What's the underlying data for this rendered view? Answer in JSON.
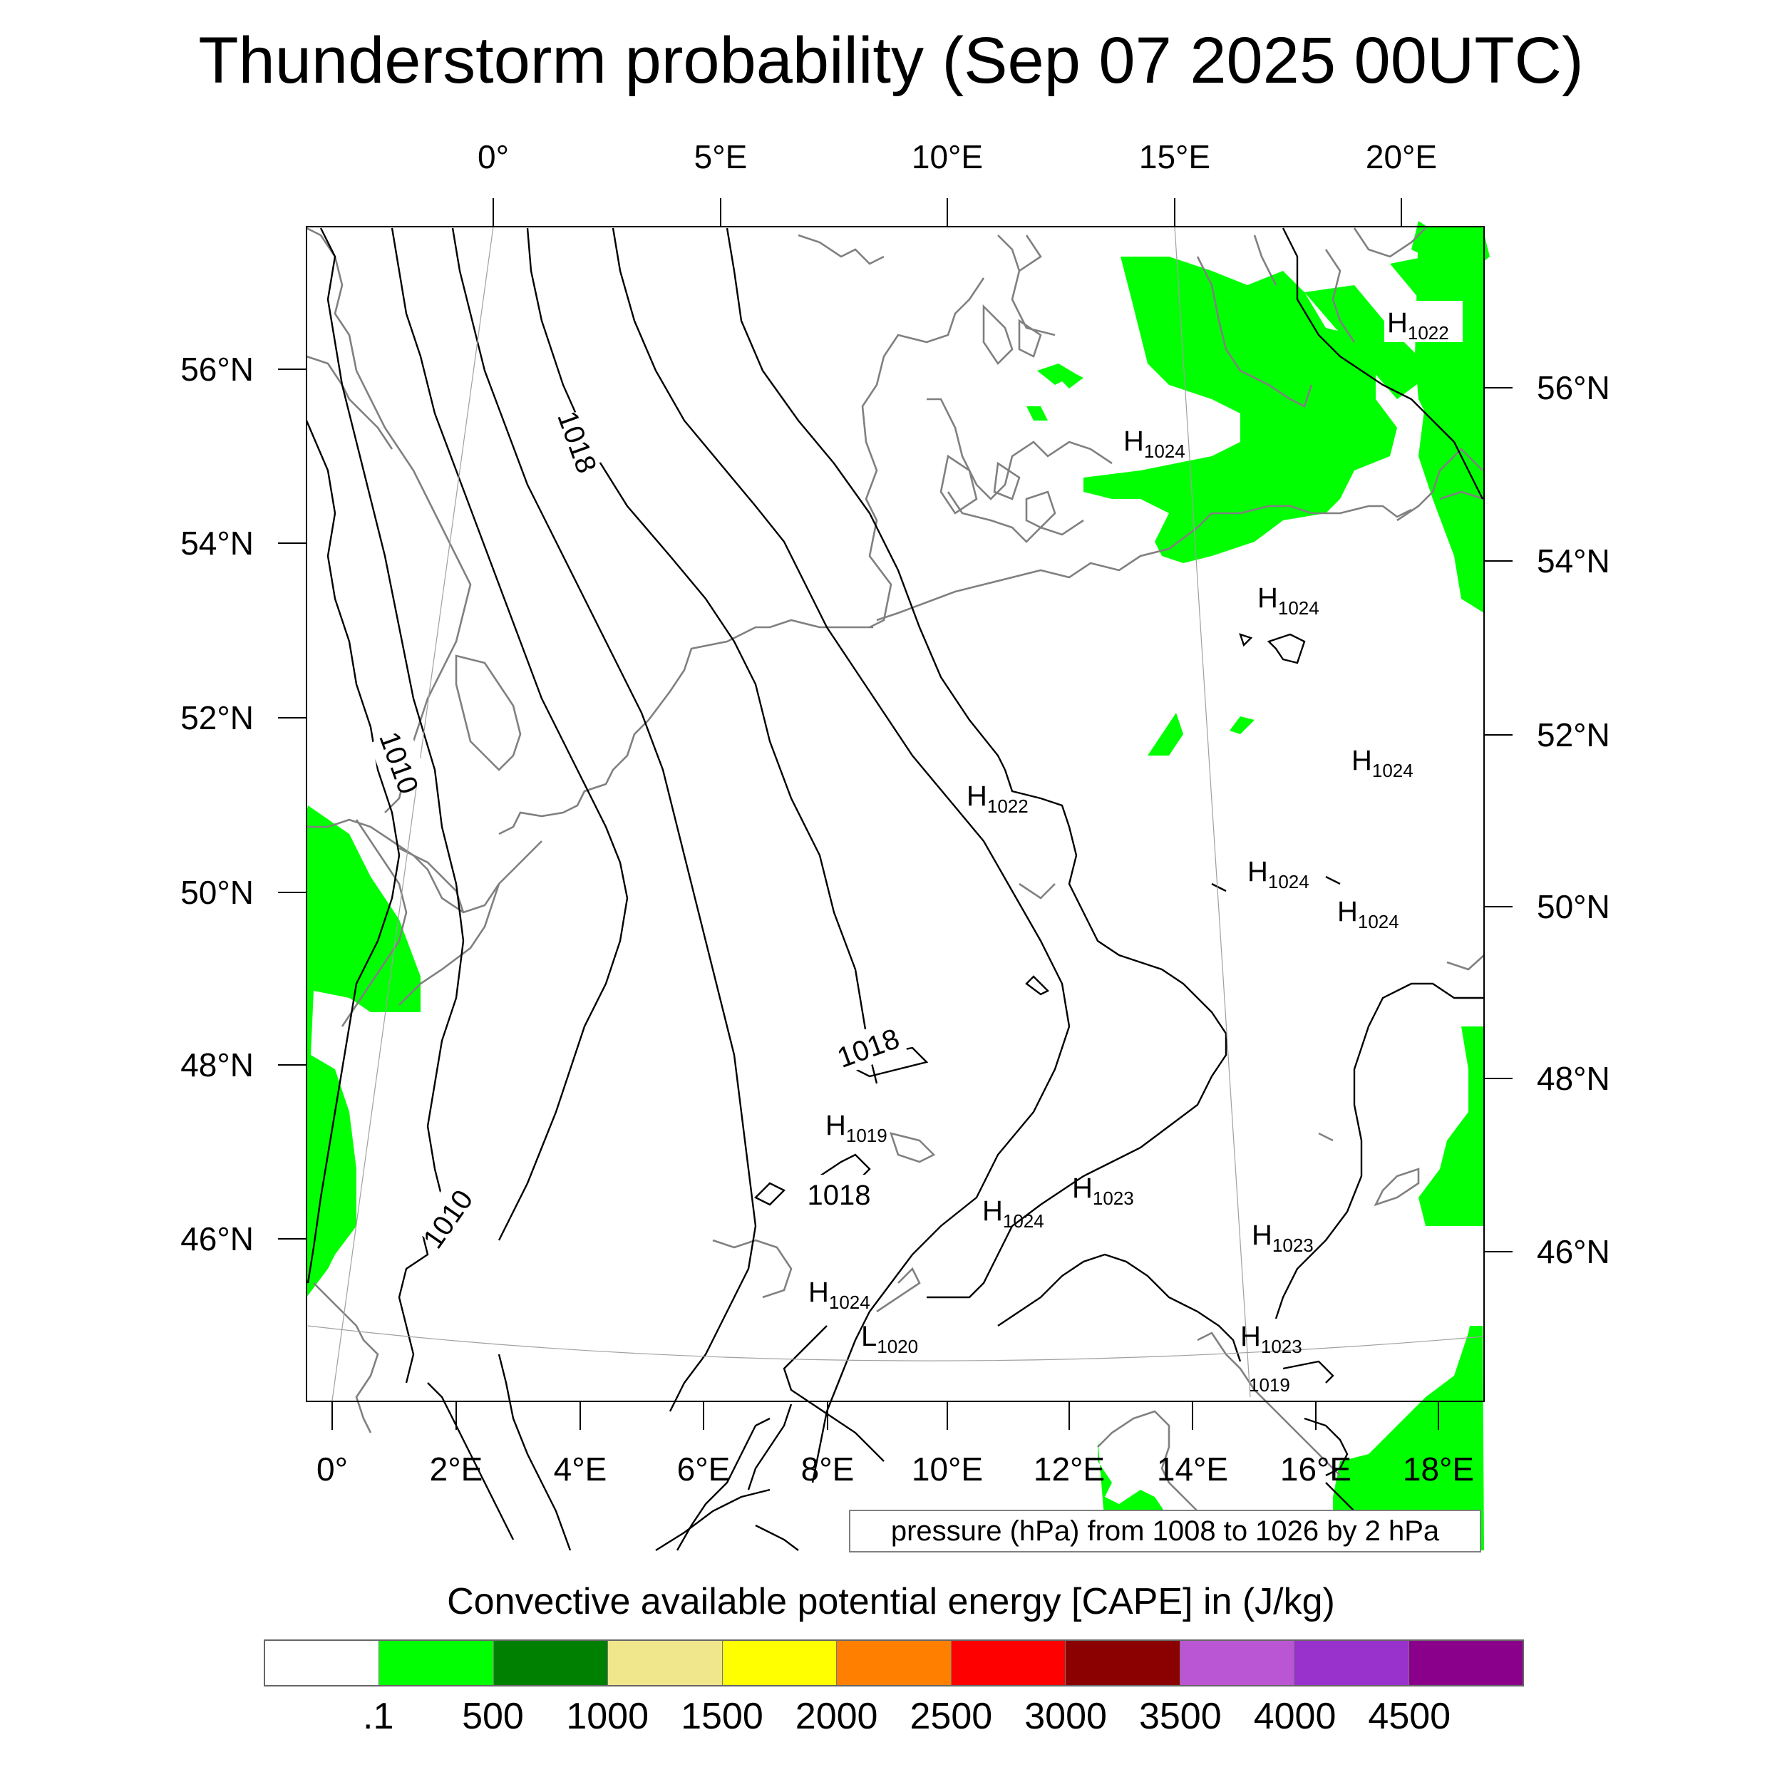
{
  "title": "Thunderstorm probability (Sep 07 2025 00UTC)",
  "top_lon_labels": [
    "0°",
    "5°E",
    "10°E",
    "15°E",
    "20°E"
  ],
  "bottom_lon_labels": [
    "0°",
    "2°E",
    "4°E",
    "6°E",
    "8°E",
    "10°E",
    "12°E",
    "14°E",
    "16°E",
    "18°E"
  ],
  "left_lat_labels": [
    "56°N",
    "54°N",
    "52°N",
    "50°N",
    "48°N",
    "46°N"
  ],
  "right_lat_labels": [
    "56°N",
    "54°N",
    "52°N",
    "50°N",
    "48°N",
    "46°N"
  ],
  "contour_labels": [
    "1018",
    "1010",
    "1018",
    "1010",
    "1018"
  ],
  "pressure_centers": [
    {
      "type": "H",
      "value": "1022"
    },
    {
      "type": "H",
      "value": "1024"
    },
    {
      "type": "H",
      "value": "1024"
    },
    {
      "type": "H",
      "value": "1024"
    },
    {
      "type": "H",
      "value": "1022"
    },
    {
      "type": "H",
      "value": "1024"
    },
    {
      "type": "H",
      "value": "1024"
    },
    {
      "type": "H",
      "value": "1019"
    },
    {
      "type": "H",
      "value": "1023"
    },
    {
      "type": "H",
      "value": "1024"
    },
    {
      "type": "H",
      "value": "1023"
    },
    {
      "type": "H",
      "value": "1024"
    },
    {
      "type": "L",
      "value": "1020"
    },
    {
      "type": "H",
      "value": "1023"
    },
    {
      "type": "",
      "value": "1019"
    }
  ],
  "contour_info": "pressure (hPa) from 1008 to 1026 by 2 hPa",
  "colorbar": {
    "title": "Convective available potential energy [CAPE] in (J/kg)",
    "colors": [
      "#ffffff",
      "#00ff00",
      "#008000",
      "#f0e68c",
      "#ffff00",
      "#ff8000",
      "#ff0000",
      "#8b0000",
      "#ba55d3",
      "#9932cc",
      "#8b008b"
    ],
    "labels": [
      ".1",
      "500",
      "1000",
      "1500",
      "2000",
      "2500",
      "3000",
      "3500",
      "4000",
      "4500"
    ]
  }
}
